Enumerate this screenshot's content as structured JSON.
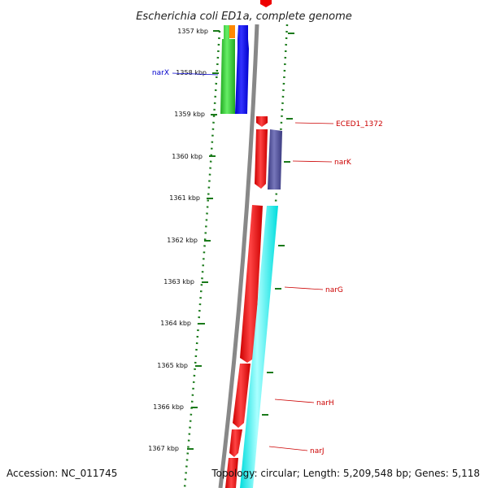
{
  "title": "Escherichia coli ED1a, complete genome",
  "footer": {
    "accession": "Accession: NC_011745",
    "topology": "Topology: circular; Length: 5,209,548 bp; Genes: 5,118"
  },
  "ticks": [
    "1357 kbp",
    "1358 kbp",
    "1359 kbp",
    "1360 kbp",
    "1361 kbp",
    "1362 kbp",
    "1363 kbp",
    "1364 kbp",
    "1365 kbp",
    "1366 kbp",
    "1367 kbp"
  ],
  "gene_labels": [
    {
      "name": "narX",
      "color": "#0000cc"
    },
    {
      "name": "ECED1_1372",
      "color": "#cc0000"
    },
    {
      "name": "narK",
      "color": "#cc0000"
    },
    {
      "name": "narG",
      "color": "#cc0000"
    },
    {
      "name": "narH",
      "color": "#cc0000"
    },
    {
      "name": "narJ",
      "color": "#cc0000"
    }
  ],
  "colors": {
    "backbone": "#888888",
    "dots": "#1a7a1a",
    "forward_strand": "#ff0000",
    "reverse_strand": "#0000ff",
    "cyan_track": "#00ffff",
    "purple_track": "#555599",
    "green_track": "#33cc33",
    "orange_track": "#ff8800"
  }
}
